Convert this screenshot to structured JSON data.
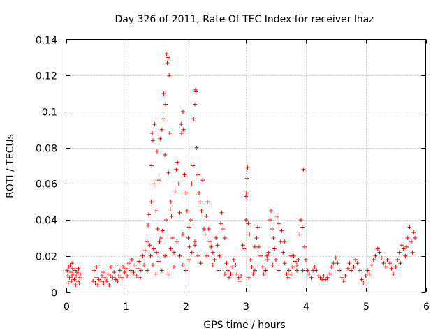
{
  "chart_data": {
    "type": "scatter",
    "title": "Day 326 of 2011, Rate Of TEC Index for receiver lhaz",
    "xlabel": "GPS time / hours",
    "ylabel": "ROTI / TECUs",
    "xlim": [
      0,
      6
    ],
    "ylim": [
      0,
      0.14
    ],
    "x_ticks": [
      0,
      1,
      2,
      3,
      4,
      5,
      6
    ],
    "x_tick_labels": [
      "0",
      "1",
      "2",
      "3",
      "4",
      "5",
      "6"
    ],
    "y_ticks": [
      0,
      0.02,
      0.04,
      0.06,
      0.08,
      0.1,
      0.12,
      0.14
    ],
    "y_tick_labels": [
      "0",
      "0.02",
      "0.04",
      "0.06",
      "0.08",
      "0.1",
      "0.12",
      "0.14"
    ],
    "grid": true,
    "marker": "plus",
    "color": "#ff0000",
    "series": [
      {
        "name": "ROTI",
        "points": [
          [
            0.02,
            0.012
          ],
          [
            0.03,
            0.009
          ],
          [
            0.05,
            0.014
          ],
          [
            0.06,
            0.008
          ],
          [
            0.08,
            0.011
          ],
          [
            0.09,
            0.006
          ],
          [
            0.11,
            0.013
          ],
          [
            0.12,
            0.01
          ],
          [
            0.14,
            0.007
          ],
          [
            0.15,
            0.012
          ],
          [
            0.17,
            0.009
          ],
          [
            0.18,
            0.011
          ],
          [
            0.2,
            0.006
          ],
          [
            0.21,
            0.013
          ],
          [
            0.23,
            0.008
          ],
          [
            0.24,
            0.01
          ],
          [
            0.04,
            0.005
          ],
          [
            0.07,
            0.015
          ],
          [
            0.1,
            0.009
          ],
          [
            0.16,
            0.004
          ],
          [
            0.45,
            0.006
          ],
          [
            0.47,
            0.012
          ],
          [
            0.49,
            0.005
          ],
          [
            0.51,
            0.014
          ],
          [
            0.53,
            0.004
          ],
          [
            0.55,
            0.007
          ],
          [
            0.58,
            0.006
          ],
          [
            0.6,
            0.009
          ],
          [
            0.63,
            0.005
          ],
          [
            0.65,
            0.008
          ],
          [
            0.68,
            0.006
          ],
          [
            0.7,
            0.01
          ],
          [
            0.72,
            0.004
          ],
          [
            0.75,
            0.014
          ],
          [
            0.78,
            0.008
          ],
          [
            0.8,
            0.011
          ],
          [
            0.83,
            0.007
          ],
          [
            0.85,
            0.015
          ],
          [
            0.88,
            0.009
          ],
          [
            0.9,
            0.012
          ],
          [
            0.93,
            0.008
          ],
          [
            0.95,
            0.014
          ],
          [
            0.98,
            0.011
          ],
          [
            1.0,
            0.013
          ],
          [
            1.02,
            0.009
          ],
          [
            1.05,
            0.016
          ],
          [
            1.08,
            0.012
          ],
          [
            1.1,
            0.018
          ],
          [
            1.13,
            0.011
          ],
          [
            1.15,
            0.015
          ],
          [
            1.18,
            0.009
          ],
          [
            1.2,
            0.013
          ],
          [
            1.22,
            0.017
          ],
          [
            1.25,
            0.012
          ],
          [
            1.28,
            0.02
          ],
          [
            1.3,
            0.015
          ],
          [
            1.32,
            0.023
          ],
          [
            1.35,
            0.028
          ],
          [
            1.37,
            0.037
          ],
          [
            1.38,
            0.043
          ],
          [
            1.4,
            0.026
          ],
          [
            1.42,
            0.05
          ],
          [
            1.43,
            0.07
          ],
          [
            1.44,
            0.088
          ],
          [
            1.45,
            0.084
          ],
          [
            1.47,
            0.06
          ],
          [
            1.48,
            0.093
          ],
          [
            1.5,
            0.045
          ],
          [
            1.52,
            0.078
          ],
          [
            1.53,
            0.035
          ],
          [
            1.55,
            0.062
          ],
          [
            1.57,
            0.085
          ],
          [
            1.58,
            0.03
          ],
          [
            1.6,
            0.09
          ],
          [
            1.62,
            0.096
          ],
          [
            1.63,
            0.11
          ],
          [
            1.65,
            0.076
          ],
          [
            1.66,
            0.104
          ],
          [
            1.68,
            0.132
          ],
          [
            1.69,
            0.127
          ],
          [
            1.7,
            0.13
          ],
          [
            1.71,
            0.066
          ],
          [
            1.72,
            0.12
          ],
          [
            1.73,
            0.088
          ],
          [
            1.75,
            0.05
          ],
          [
            1.76,
            0.042
          ],
          [
            1.78,
            0.03
          ],
          [
            1.8,
            0.022
          ],
          [
            1.82,
            0.056
          ],
          [
            1.84,
            0.068
          ],
          [
            1.86,
            0.072
          ],
          [
            1.88,
            0.06
          ],
          [
            1.9,
            0.044
          ],
          [
            1.92,
            0.093
          ],
          [
            1.93,
            0.088
          ],
          [
            1.95,
            0.1
          ],
          [
            1.96,
            0.09
          ],
          [
            1.98,
            0.065
          ],
          [
            2.0,
            0.055
          ],
          [
            2.02,
            0.045
          ],
          [
            2.04,
            0.03
          ],
          [
            2.06,
            0.025
          ],
          [
            2.08,
            0.04
          ],
          [
            2.1,
            0.06
          ],
          [
            2.12,
            0.07
          ],
          [
            2.13,
            0.096
          ],
          [
            2.15,
            0.104
          ],
          [
            2.16,
            0.112
          ],
          [
            2.17,
            0.111
          ],
          [
            2.18,
            0.08
          ],
          [
            2.2,
            0.065
          ],
          [
            2.22,
            0.055
          ],
          [
            2.24,
            0.05
          ],
          [
            2.26,
            0.045
          ],
          [
            2.28,
            0.062
          ],
          [
            2.3,
            0.035
          ],
          [
            2.32,
            0.032
          ],
          [
            2.34,
            0.042
          ],
          [
            2.36,
            0.05
          ],
          [
            2.38,
            0.035
          ],
          [
            2.4,
            0.028
          ],
          [
            2.42,
            0.025
          ],
          [
            2.45,
            0.022
          ],
          [
            2.48,
            0.018
          ],
          [
            2.5,
            0.03
          ],
          [
            2.53,
            0.026
          ],
          [
            2.56,
            0.02
          ],
          [
            2.58,
            0.038
          ],
          [
            2.6,
            0.044
          ],
          [
            2.62,
            0.035
          ],
          [
            2.65,
            0.03
          ],
          [
            2.68,
            0.016
          ],
          [
            2.7,
            0.012
          ],
          [
            2.72,
            0.008
          ],
          [
            2.75,
            0.01
          ],
          [
            2.78,
            0.014
          ],
          [
            2.8,
            0.018
          ],
          [
            2.83,
            0.015
          ],
          [
            2.85,
            0.01
          ],
          [
            2.88,
            0.008
          ],
          [
            2.9,
            0.006
          ],
          [
            2.92,
            0.009
          ],
          [
            2.95,
            0.026
          ],
          [
            2.97,
            0.024
          ],
          [
            3.0,
            0.04
          ],
          [
            3.0,
            0.053
          ],
          [
            3.01,
            0.055
          ],
          [
            3.02,
            0.063
          ],
          [
            3.03,
            0.069
          ],
          [
            3.04,
            0.038
          ],
          [
            3.06,
            0.032
          ],
          [
            3.08,
            0.018
          ],
          [
            3.1,
            0.014
          ],
          [
            3.12,
            0.01
          ],
          [
            3.15,
            0.025
          ],
          [
            3.18,
            0.03
          ],
          [
            3.2,
            0.036
          ],
          [
            3.22,
            0.025
          ],
          [
            3.25,
            0.02
          ],
          [
            3.28,
            0.014
          ],
          [
            3.3,
            0.01
          ],
          [
            3.33,
            0.012
          ],
          [
            3.36,
            0.018
          ],
          [
            3.38,
            0.022
          ],
          [
            3.4,
            0.04
          ],
          [
            3.42,
            0.045
          ],
          [
            3.44,
            0.035
          ],
          [
            3.46,
            0.03
          ],
          [
            3.48,
            0.024
          ],
          [
            3.5,
            0.018
          ],
          [
            3.52,
            0.042
          ],
          [
            3.55,
            0.038
          ],
          [
            3.58,
            0.028
          ],
          [
            3.6,
            0.034
          ],
          [
            3.62,
            0.022
          ],
          [
            3.65,
            0.016
          ],
          [
            3.68,
            0.01
          ],
          [
            3.7,
            0.008
          ],
          [
            3.72,
            0.012
          ],
          [
            3.75,
            0.01
          ],
          [
            3.78,
            0.014
          ],
          [
            3.8,
            0.02
          ],
          [
            3.82,
            0.017
          ],
          [
            3.85,
            0.012
          ],
          [
            3.88,
            0.018
          ],
          [
            3.9,
            0.032
          ],
          [
            3.92,
            0.04
          ],
          [
            3.94,
            0.036
          ],
          [
            3.96,
            0.068
          ],
          [
            3.98,
            0.025
          ],
          [
            4.0,
            0.018
          ],
          [
            4.03,
            0.012
          ],
          [
            4.06,
            0.01
          ],
          [
            4.09,
            0.008
          ],
          [
            4.12,
            0.012
          ],
          [
            4.15,
            0.014
          ],
          [
            4.18,
            0.012
          ],
          [
            4.21,
            0.009
          ],
          [
            4.24,
            0.008
          ],
          [
            4.27,
            0.007
          ],
          [
            4.3,
            0.009
          ],
          [
            4.33,
            0.007
          ],
          [
            4.36,
            0.008
          ],
          [
            4.4,
            0.01
          ],
          [
            4.43,
            0.014
          ],
          [
            4.46,
            0.016
          ],
          [
            4.5,
            0.019
          ],
          [
            4.53,
            0.016
          ],
          [
            4.56,
            0.012
          ],
          [
            4.6,
            0.008
          ],
          [
            4.63,
            0.006
          ],
          [
            4.66,
            0.009
          ],
          [
            4.7,
            0.013
          ],
          [
            4.73,
            0.016
          ],
          [
            4.76,
            0.012
          ],
          [
            4.8,
            0.014
          ],
          [
            4.83,
            0.018
          ],
          [
            4.86,
            0.016
          ],
          [
            4.9,
            0.012
          ],
          [
            4.93,
            0.007
          ],
          [
            4.96,
            0.005
          ],
          [
            5.0,
            0.009
          ],
          [
            5.03,
            0.012
          ],
          [
            5.06,
            0.01
          ],
          [
            5.1,
            0.015
          ],
          [
            5.13,
            0.018
          ],
          [
            5.16,
            0.02
          ],
          [
            5.2,
            0.024
          ],
          [
            5.23,
            0.022
          ],
          [
            5.26,
            0.019
          ],
          [
            5.3,
            0.016
          ],
          [
            5.33,
            0.014
          ],
          [
            5.36,
            0.018
          ],
          [
            5.4,
            0.016
          ],
          [
            5.43,
            0.013
          ],
          [
            5.46,
            0.01
          ],
          [
            5.5,
            0.014
          ],
          [
            5.53,
            0.018
          ],
          [
            5.56,
            0.022
          ],
          [
            5.6,
            0.026
          ],
          [
            5.63,
            0.024
          ],
          [
            5.66,
            0.02
          ],
          [
            5.7,
            0.03
          ],
          [
            5.73,
            0.036
          ],
          [
            5.76,
            0.028
          ],
          [
            5.8,
            0.033
          ],
          [
            5.82,
            0.03
          ],
          [
            5.78,
            0.022
          ],
          [
            5.68,
            0.025
          ],
          [
            5.58,
            0.016
          ],
          [
            1.9,
            0.02
          ],
          [
            1.95,
            0.015
          ],
          [
            2.0,
            0.012
          ],
          [
            2.05,
            0.018
          ],
          [
            2.1,
            0.022
          ],
          [
            2.15,
            0.028
          ],
          [
            2.2,
            0.02
          ],
          [
            2.25,
            0.016
          ],
          [
            1.8,
            0.014
          ],
          [
            1.7,
            0.01
          ],
          [
            1.6,
            0.012
          ],
          [
            1.5,
            0.01
          ],
          [
            1.45,
            0.015
          ],
          [
            1.55,
            0.017
          ],
          [
            1.65,
            0.02
          ],
          [
            1.75,
            0.024
          ],
          [
            1.85,
            0.028
          ],
          [
            1.95,
            0.032
          ],
          [
            2.05,
            0.036
          ],
          [
            2.15,
            0.026
          ],
          [
            2.35,
            0.02
          ],
          [
            2.45,
            0.015
          ],
          [
            2.55,
            0.012
          ],
          [
            2.65,
            0.01
          ],
          [
            3.05,
            0.008
          ],
          [
            3.15,
            0.012
          ],
          [
            3.35,
            0.02
          ],
          [
            3.45,
            0.015
          ],
          [
            3.55,
            0.012
          ],
          [
            3.65,
            0.028
          ],
          [
            3.75,
            0.02
          ],
          [
            3.85,
            0.015
          ],
          [
            3.95,
            0.012
          ],
          [
            0.1,
            0.016
          ],
          [
            0.2,
            0.013
          ],
          [
            0.22,
            0.005
          ],
          [
            0.5,
            0.008
          ],
          [
            0.62,
            0.011
          ],
          [
            0.74,
            0.009
          ],
          [
            0.86,
            0.006
          ],
          [
            1.12,
            0.01
          ],
          [
            1.24,
            0.008
          ],
          [
            1.36,
            0.012
          ],
          [
            1.41,
            0.02
          ],
          [
            1.46,
            0.024
          ],
          [
            1.51,
            0.022
          ],
          [
            1.56,
            0.028
          ],
          [
            1.61,
            0.034
          ],
          [
            1.67,
            0.04
          ],
          [
            1.74,
            0.046
          ]
        ]
      }
    ]
  }
}
